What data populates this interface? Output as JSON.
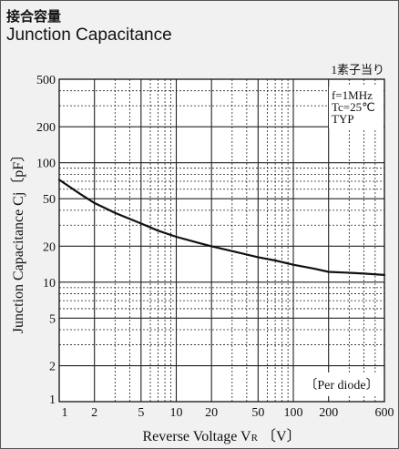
{
  "title_jp": "接合容量",
  "title_en": "Junction Capacitance",
  "chart_data": {
    "type": "line",
    "title": "接合容量 Junction Capacitance",
    "xlabel": "Reverse Voltage  V",
    "xlabel_sub": "R",
    "xlabel_unit": "〔V〕",
    "ylabel": "Junction Capacitance  Cj〔pF〕",
    "x_scale": "log",
    "y_scale": "log",
    "xlim": [
      1,
      600
    ],
    "ylim": [
      1,
      500
    ],
    "grid": true,
    "x_ticks": [
      1,
      2,
      5,
      10,
      20,
      50,
      100,
      200,
      600
    ],
    "x_tick_labels": [
      "1",
      "2",
      "5",
      "10",
      "20",
      "50",
      "100",
      "200",
      "600"
    ],
    "y_ticks": [
      1,
      2,
      5,
      10,
      20,
      50,
      100,
      200,
      500
    ],
    "y_tick_labels": [
      "1",
      "2",
      "5",
      "10",
      "20",
      "50",
      "100",
      "200",
      "500"
    ],
    "note_top": "1素子当り",
    "conditions": [
      "f=1MHz",
      "Tc=25℃",
      "TYP"
    ],
    "annotation": "〔Per diode〕",
    "series": [
      {
        "x": [
          1,
          1.5,
          2,
          3,
          5,
          7,
          10,
          15,
          20,
          30,
          50,
          70,
          100,
          150,
          200,
          300,
          400,
          600
        ],
        "y": [
          72,
          55,
          46,
          38,
          31,
          27,
          24,
          21.5,
          20,
          18.2,
          16.2,
          15.2,
          14,
          13,
          12.2,
          12,
          11.8,
          11.5
        ]
      }
    ],
    "colors": {
      "line": "#111111",
      "grid": "#222222",
      "plot_bg": "#ffffff"
    }
  }
}
